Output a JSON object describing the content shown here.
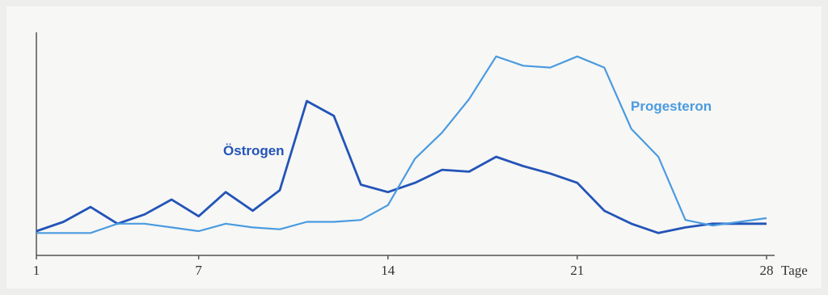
{
  "chart_data": {
    "type": "line",
    "title": "",
    "xlabel": "Tage",
    "ylabel": "",
    "xlim": [
      1,
      28
    ],
    "ylim": [
      0,
      100
    ],
    "grid": false,
    "x_ticks": [
      "1",
      "7",
      "14",
      "21",
      "28"
    ],
    "x": [
      1,
      2,
      3,
      4,
      5,
      6,
      7,
      8,
      9,
      10,
      11,
      12,
      13,
      14,
      15,
      16,
      17,
      18,
      19,
      20,
      21,
      22,
      23,
      24,
      25,
      26,
      27,
      28
    ],
    "series": [
      {
        "name": "Östrogen",
        "color": "#2354b8",
        "values": [
          0,
          5,
          13,
          4,
          9,
          17,
          8,
          21,
          11,
          22,
          70,
          62,
          25,
          21,
          26,
          33,
          32,
          40,
          35,
          31,
          26,
          11,
          4,
          -1,
          2,
          4,
          4,
          4
        ]
      },
      {
        "name": "Progesteron",
        "color": "#4a9be0",
        "values": [
          -1,
          -1,
          -1,
          4,
          4,
          2,
          0,
          4,
          2,
          1,
          5,
          5,
          6,
          14,
          39,
          53,
          71,
          94,
          89,
          88,
          94,
          88,
          55,
          40,
          6,
          3,
          5,
          7
        ]
      }
    ]
  }
}
